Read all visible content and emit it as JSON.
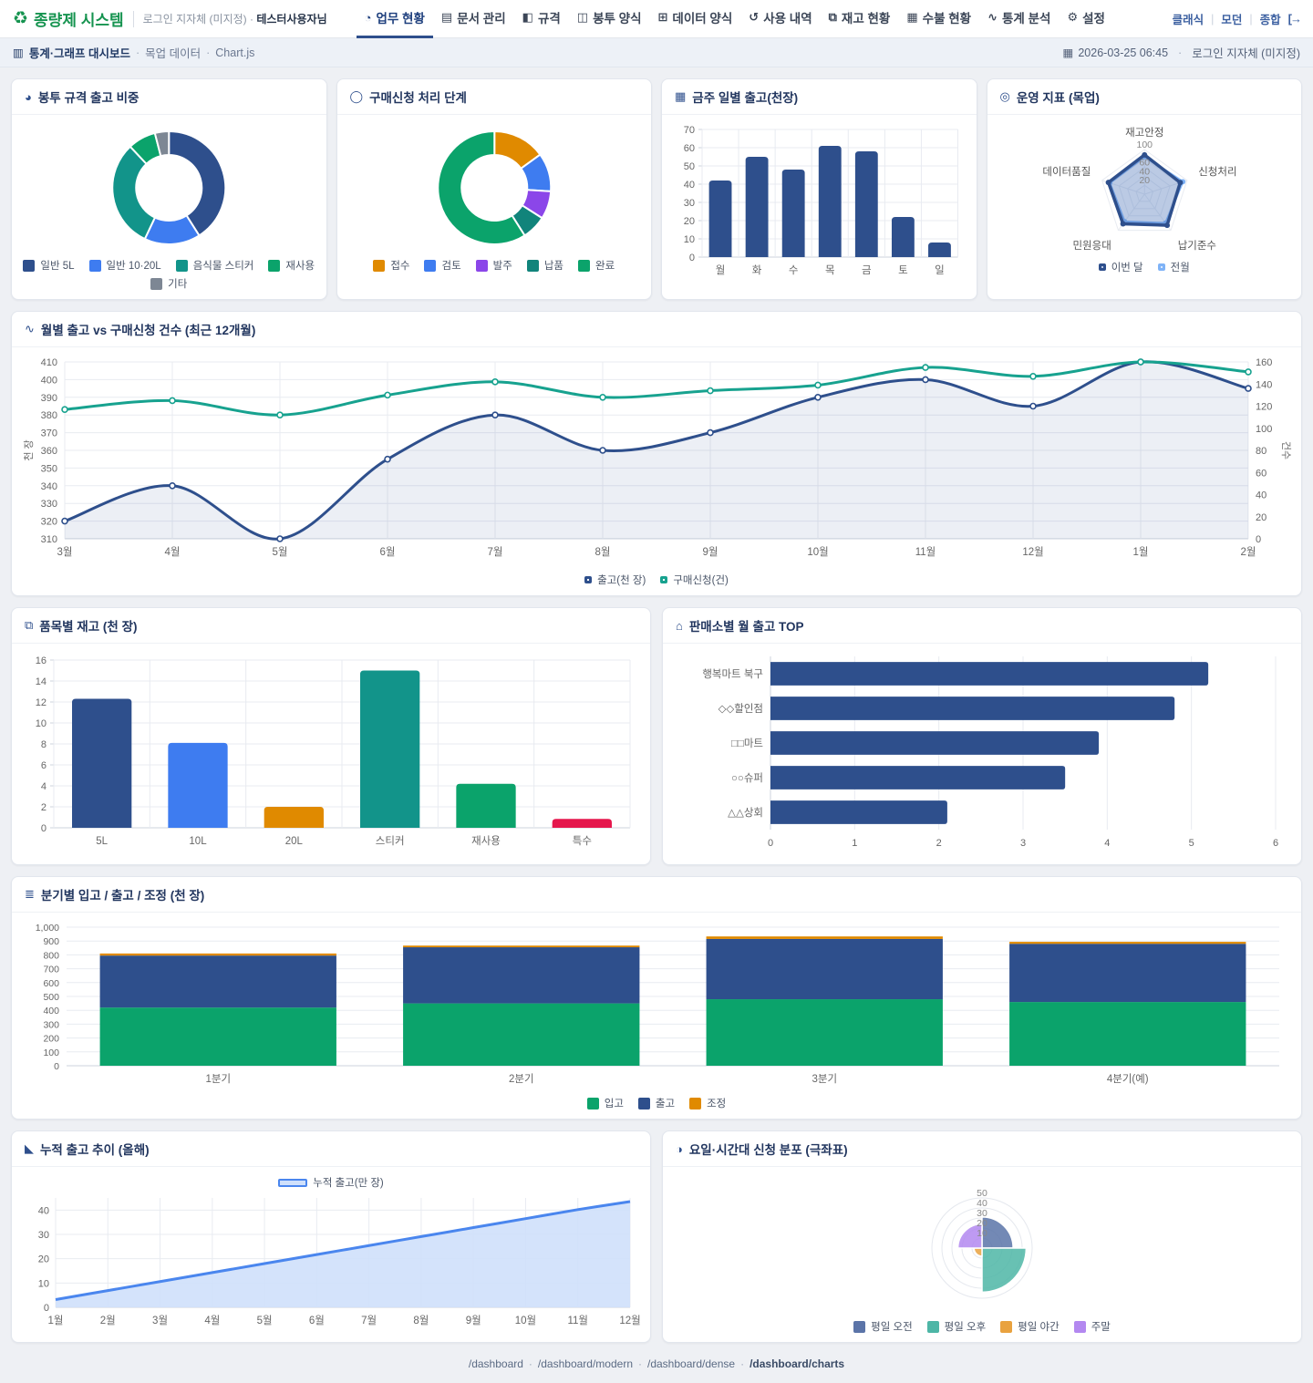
{
  "app": {
    "title": "종량제 시스템",
    "logo_icon": "♻",
    "login_context": "로그인 지자체 (미지정) ·",
    "user_name": "테스터사용자님",
    "nav_items": [
      {
        "name": "tab-work-status",
        "label": "업무 현황",
        "icon": "◔",
        "active": true
      },
      {
        "name": "tab-docs",
        "label": "문서 관리",
        "icon": "▤",
        "active": false
      },
      {
        "name": "tab-specs",
        "label": "규격",
        "icon": "◧",
        "active": false
      },
      {
        "name": "tab-envelope-form",
        "label": "봉투 양식",
        "icon": "◫",
        "active": false
      },
      {
        "name": "tab-data-form",
        "label": "데이터 양식",
        "icon": "⊞",
        "active": false
      },
      {
        "name": "tab-usage-history",
        "label": "사용 내역",
        "icon": "↺",
        "active": false
      },
      {
        "name": "tab-inventory",
        "label": "재고 현황",
        "icon": "⧉",
        "active": false
      },
      {
        "name": "tab-ledger",
        "label": "수불 현황",
        "icon": "▦",
        "active": false
      },
      {
        "name": "tab-analytics",
        "label": "통계 분석",
        "icon": "∿",
        "active": false
      },
      {
        "name": "tab-settings",
        "label": "설정",
        "icon": "⚙",
        "active": false
      }
    ],
    "view_links": [
      "클래식",
      "모던",
      "종합"
    ],
    "logout_icon": "[→"
  },
  "breadcrumb": {
    "icon": "▥",
    "title": "통계·그래프 대시보드",
    "separator": "·",
    "trail": [
      "목업 데이터",
      "Chart.js"
    ],
    "datetime_icon": "▦",
    "datetime": "2026-03-25 06:45",
    "context": "로그인 지자체 (미지정)"
  },
  "footer": {
    "links": [
      "/dashboard",
      "/dashboard/modern",
      "/dashboard/dense",
      "/dashboard/charts"
    ],
    "current": "/dashboard/charts",
    "separator": "·"
  },
  "colors": {
    "navy": "#2e4f8c",
    "blue": "#3e7cf0",
    "teal": "#12948a",
    "teal_line": "#17a28f",
    "green": "#0ba36b",
    "dark_teal": "#11847b",
    "orange": "#e08a00",
    "purple": "#8b46e9",
    "red": "#e5174d",
    "gray": "#7d8794",
    "slate": "#5b74a8",
    "polar_teal": "#4db6a6",
    "polar_orange": "#e9a23f",
    "polar_purple": "#b388f0",
    "cum_blue": "#4a86ee",
    "cum_fill": "#cfe0fb",
    "radar_prev": "#7fb3f7",
    "grid": "#e8ebf1",
    "axis": "#cdd3dc",
    "tick_text": "#666666",
    "brand_green": "#15934f",
    "accent": "#2e4f8c"
  },
  "chart_data": [
    {
      "id": "envelope_share",
      "type": "pie",
      "icon": "◕",
      "title": "봉투 규격 출고 비중",
      "labels": [
        "일반 5L",
        "일반 10·20L",
        "음식물 스티커",
        "재사용",
        "기타"
      ],
      "values": [
        41,
        16,
        31,
        8,
        4
      ],
      "colors": [
        "#2e4f8c",
        "#3e7cf0",
        "#12948a",
        "#0ba36b",
        "#7d8794"
      ],
      "legend_position": "bottom"
    },
    {
      "id": "request_stages",
      "type": "pie",
      "icon": "◯",
      "title": "구매신청 처리 단계",
      "labels": [
        "접수",
        "검토",
        "발주",
        "납품",
        "완료"
      ],
      "values": [
        15,
        11,
        8,
        7,
        59
      ],
      "colors": [
        "#e08a00",
        "#3e7cf0",
        "#8b46e9",
        "#11847b",
        "#0ba36b"
      ],
      "legend_position": "bottom"
    },
    {
      "id": "weekly_daily",
      "type": "bar",
      "icon": "▦",
      "title": "금주 일별 출고(천장)",
      "categories": [
        "월",
        "화",
        "수",
        "목",
        "금",
        "토",
        "일"
      ],
      "values": [
        42,
        55,
        48,
        61,
        58,
        22,
        8
      ],
      "bar_color": "#2e4f8c",
      "ylim": [
        0,
        70
      ],
      "ytick_step": 10,
      "grid": true
    },
    {
      "id": "ops_radar",
      "type": "radar",
      "icon": "◎",
      "title": "운영 지표 (목업)",
      "axes": [
        "재고안정",
        "신청처리",
        "납기준수",
        "민원응대",
        "데이터품질"
      ],
      "series": [
        {
          "name": "이번 달",
          "values": [
            88,
            84,
            86,
            82,
            85
          ],
          "color": "#2e4f8c"
        },
        {
          "name": "전월",
          "values": [
            84,
            90,
            80,
            76,
            82
          ],
          "color": "#7fb3f7"
        }
      ],
      "rmax": 100,
      "rticks": [
        20,
        40,
        60,
        80,
        100
      ],
      "rtick_labels": [
        20,
        40,
        60,
        100
      ],
      "legend_position": "bottom"
    },
    {
      "id": "monthly_dual",
      "type": "line",
      "icon": "∿",
      "title": "월별 출고 vs 구매신청 건수 (최근 12개월)",
      "x": [
        "3월",
        "4월",
        "5월",
        "6월",
        "7월",
        "8월",
        "9월",
        "10월",
        "11월",
        "12월",
        "1월",
        "2월"
      ],
      "series": [
        {
          "name": "출고(천 장)",
          "axis": "left",
          "fill": true,
          "color": "#2e4f8c",
          "values": [
            320,
            340,
            310,
            355,
            380,
            360,
            370,
            390,
            400,
            385,
            410,
            395
          ]
        },
        {
          "name": "구매신청(건)",
          "axis": "right",
          "fill": false,
          "color": "#17a28f",
          "values": [
            117,
            125,
            112,
            130,
            142,
            128,
            134,
            139,
            155,
            147,
            160,
            151
          ]
        }
      ],
      "left_axis": {
        "label": "천 장",
        "min": 310,
        "max": 410,
        "step": 10
      },
      "right_axis": {
        "label": "건수",
        "min": 0,
        "max": 160,
        "step": 20
      },
      "legend_position": "bottom",
      "grid": true
    },
    {
      "id": "stock_by_item",
      "type": "bar",
      "icon": "⧉",
      "title": "품목별 재고 (천 장)",
      "categories": [
        "5L",
        "10L",
        "20L",
        "스티커",
        "재사용",
        "특수"
      ],
      "values": [
        12.3,
        8.1,
        2,
        15,
        4.2,
        0.85
      ],
      "colors": [
        "#2e4f8c",
        "#3e7cf0",
        "#e08a00",
        "#12948a",
        "#0ba36b",
        "#e5174d"
      ],
      "ylim": [
        0,
        16
      ],
      "ytick_step": 2,
      "grid": true
    },
    {
      "id": "top_outlets",
      "type": "bar-horizontal",
      "icon": "⌂",
      "title": "판매소별 월 출고 TOP",
      "categories": [
        "행복마트 북구",
        "◇◇할인점",
        "□□마트",
        "○○슈퍼",
        "△△상회"
      ],
      "values": [
        5.2,
        4.8,
        3.9,
        3.5,
        2.1
      ],
      "bar_color": "#2e4f8c",
      "xlim": [
        0,
        6
      ],
      "xtick_step": 1,
      "grid": true
    },
    {
      "id": "quarterly_flow",
      "type": "bar-stacked",
      "icon": "≣",
      "title": "분기별 입고 / 출고 / 조정 (천 장)",
      "categories": [
        "1분기",
        "2분기",
        "3분기",
        "4분기(예)"
      ],
      "series": [
        {
          "name": "입고",
          "values": [
            420,
            450,
            480,
            460
          ],
          "color": "#0ba36b"
        },
        {
          "name": "출고",
          "values": [
            375,
            405,
            435,
            420
          ],
          "color": "#2e4f8c"
        },
        {
          "name": "조정",
          "values": [
            15,
            12,
            18,
            14
          ],
          "color": "#e08a00"
        }
      ],
      "ylim": [
        0,
        1000
      ],
      "ytick_step": 100,
      "legend_position": "bottom",
      "grid": true
    },
    {
      "id": "cumulative",
      "type": "area",
      "icon": "◣",
      "title": "누적 출고 추이 (올해)",
      "x": [
        "1월",
        "2월",
        "3월",
        "4월",
        "5월",
        "6월",
        "7월",
        "8월",
        "9월",
        "10월",
        "11월",
        "12월"
      ],
      "series": [
        {
          "name": "누적 출고(만 장)",
          "color": "#4a86ee",
          "fill_color": "#cfe0fb",
          "values": [
            3.2,
            6.9,
            10.6,
            14.3,
            18,
            21.7,
            25.4,
            29.1,
            32.8,
            36.5,
            40.2,
            43.5
          ]
        }
      ],
      "ylim": [
        0,
        45
      ],
      "yticks": [
        0,
        10,
        20,
        30,
        40
      ],
      "legend_position": "top",
      "grid": true
    },
    {
      "id": "polar_dist",
      "type": "polar",
      "icon": "◑",
      "title": "요일·시간대 신청 분포 (극좌표)",
      "labels": [
        "평일 오전",
        "평일 오후",
        "평일 야간",
        "주말"
      ],
      "values": [
        31,
        44,
        8,
        24
      ],
      "colors": [
        "#5b74a8",
        "#4db6a6",
        "#e9a23f",
        "#b388f0"
      ],
      "rings": [
        10,
        20,
        30,
        40,
        50
      ],
      "rmax": 50,
      "legend_position": "bottom"
    }
  ]
}
